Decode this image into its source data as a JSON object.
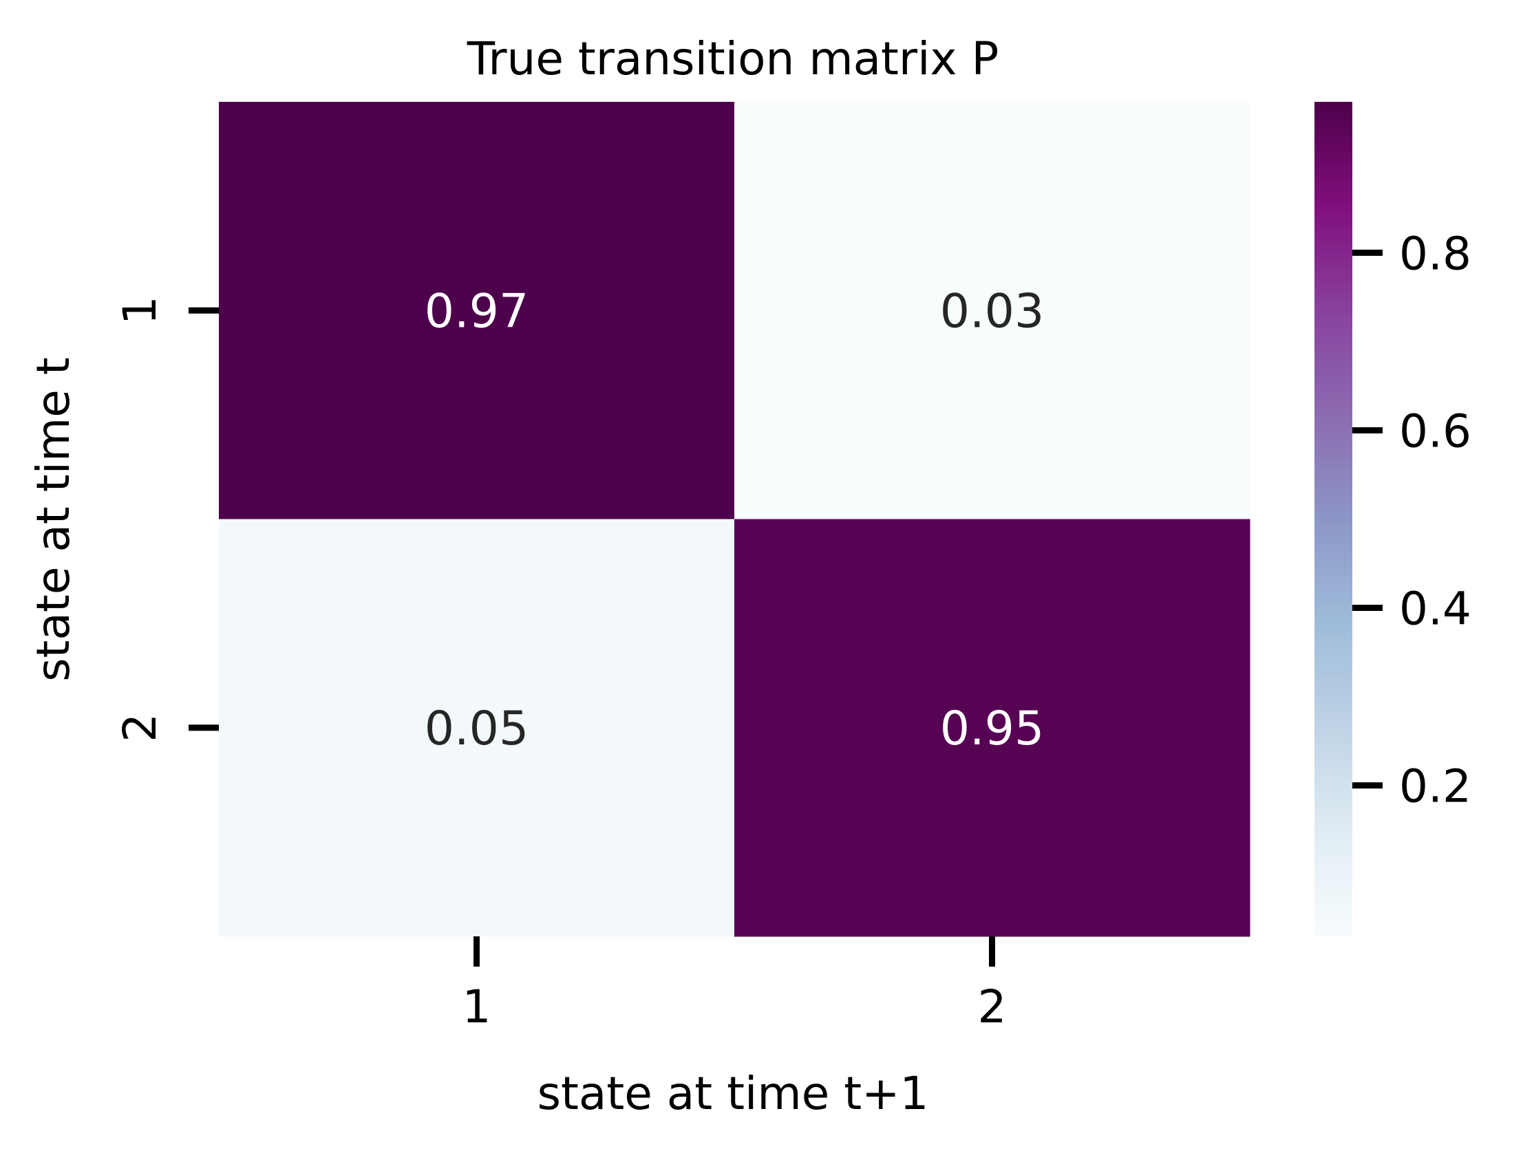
{
  "chart_data": {
    "type": "heatmap",
    "title": "True transition matrix P",
    "xlabel": "state at time t+1",
    "ylabel": "state at time t",
    "x_categories": [
      "1",
      "2"
    ],
    "y_categories": [
      "1",
      "2"
    ],
    "values": [
      [
        0.97,
        0.03
      ],
      [
        0.05,
        0.95
      ]
    ],
    "cell_labels": [
      [
        "0.97",
        "0.03"
      ],
      [
        "0.05",
        "0.95"
      ]
    ],
    "colormap": "BuPu",
    "colorbar": {
      "range": [
        0.03,
        0.97
      ],
      "ticks": [
        0.2,
        0.4,
        0.6,
        0.8
      ],
      "tick_labels": [
        "0.2",
        "0.4",
        "0.6",
        "0.8"
      ]
    },
    "colors": {
      "stops": [
        "#f7fcfd",
        "#e0ecf4",
        "#bfd3e6",
        "#9ebcda",
        "#8c96c6",
        "#8c6bb1",
        "#88419d",
        "#810f7c",
        "#4d004b"
      ],
      "light_text": "#ffffff",
      "dark_text": "#262626"
    }
  }
}
